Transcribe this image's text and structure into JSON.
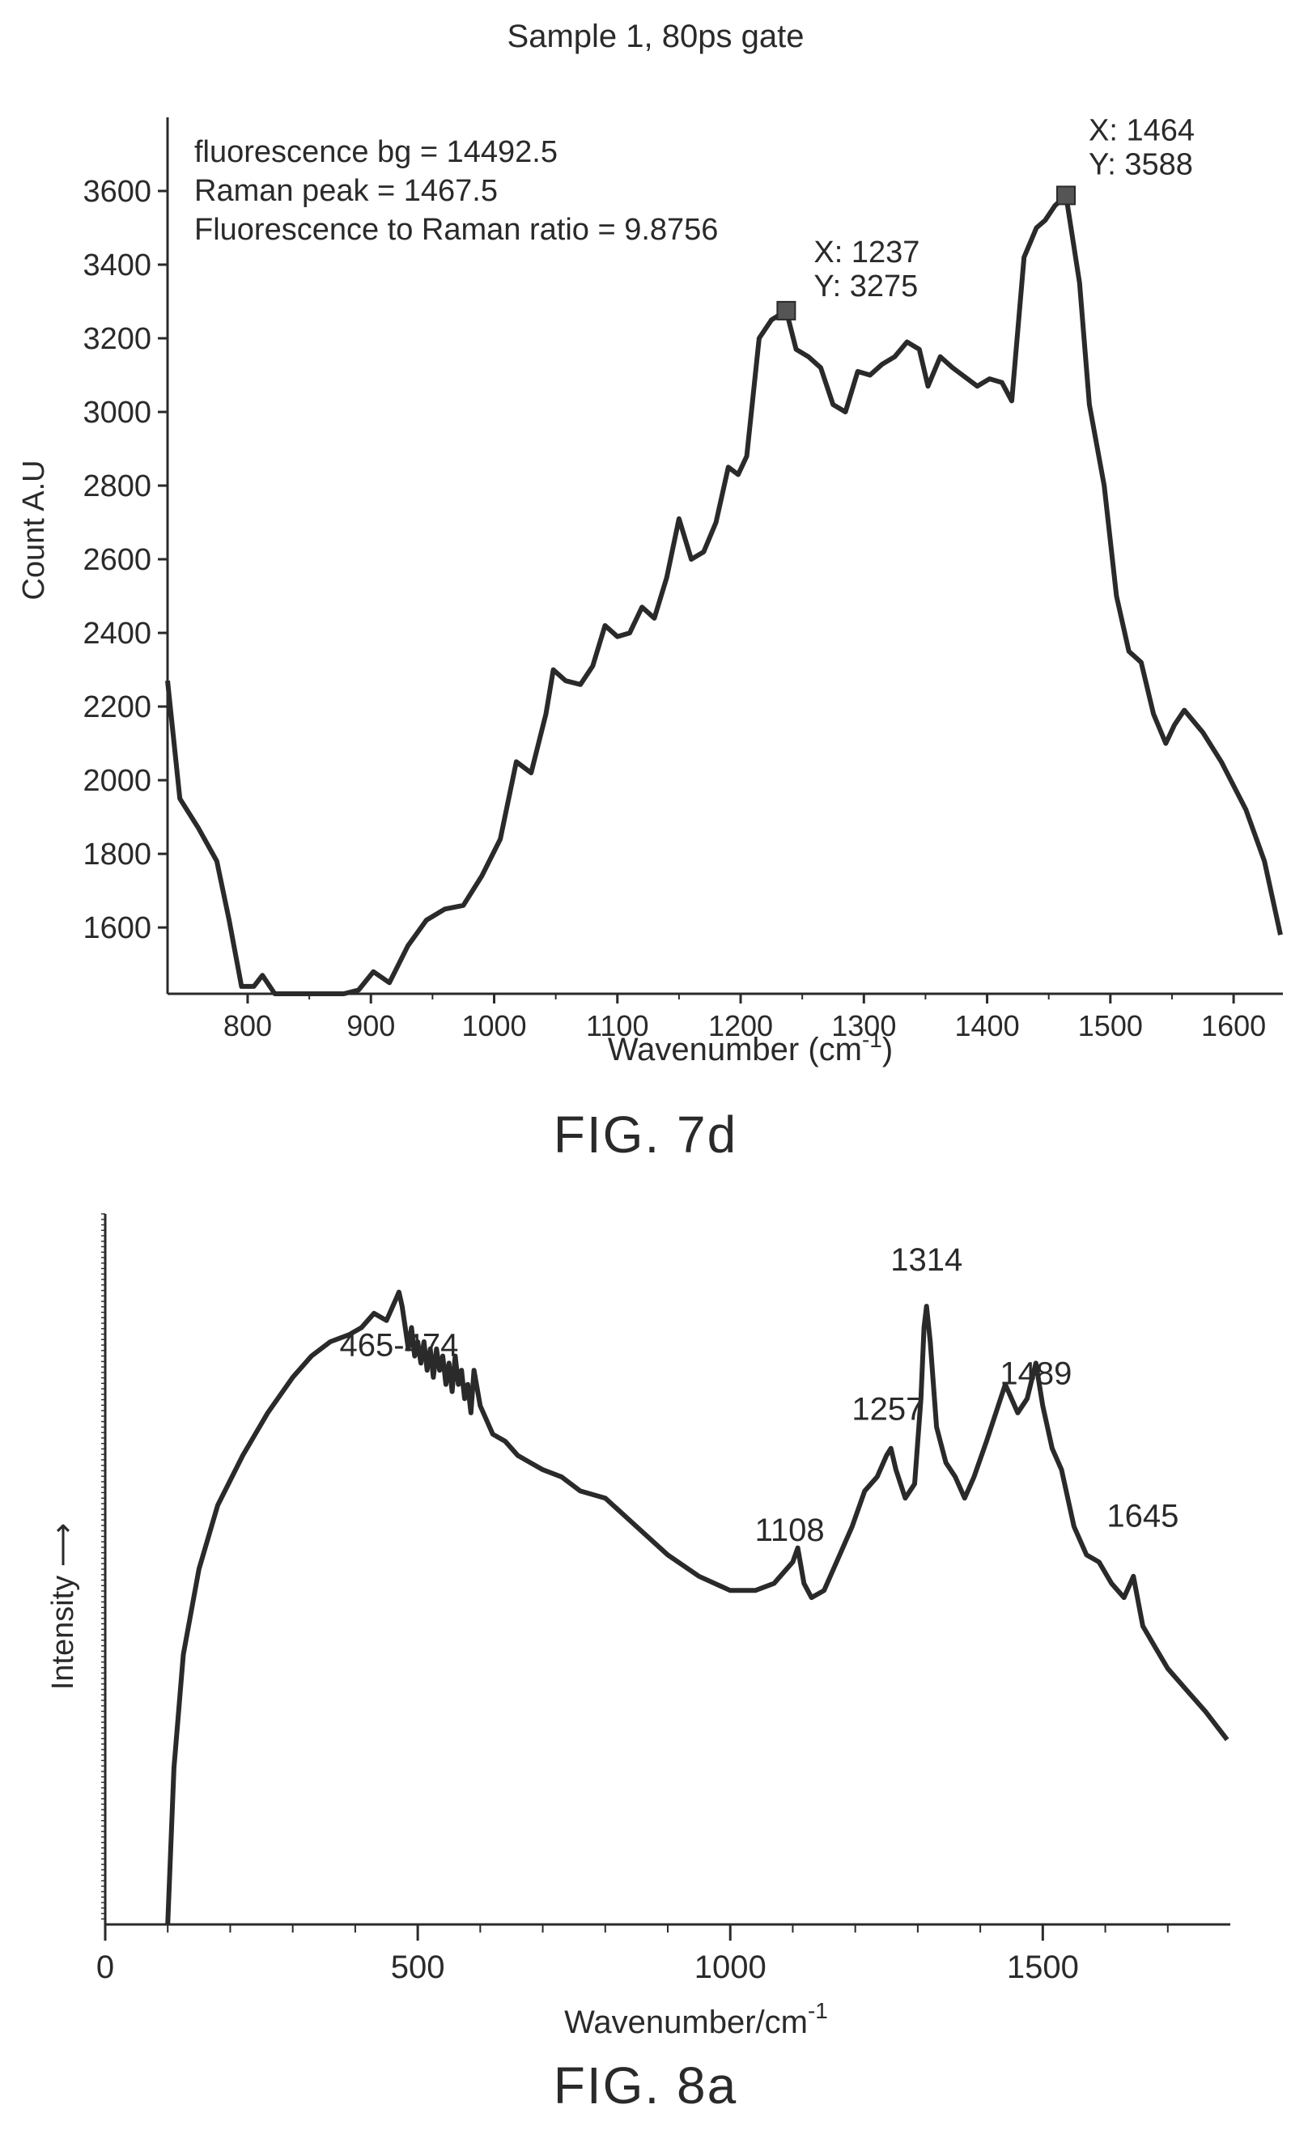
{
  "chart_data": [
    {
      "type": "line",
      "title": "Sample 1, 80ps gate",
      "xlabel": "Wavenumber (cm",
      "xlabel_sup": "-1",
      "xlabel_tail": ")",
      "ylabel": "Count A.U",
      "xlim": [
        735,
        1640
      ],
      "ylim": [
        1420,
        3800
      ],
      "xticks": [
        800,
        900,
        1000,
        1100,
        1200,
        1300,
        1400,
        1500,
        1600
      ],
      "xtick_labels": [
        "800",
        "900",
        "1000",
        "1100",
        "1200",
        "1300",
        "1400",
        "1500",
        "1600"
      ],
      "yticks": [
        1600,
        1800,
        2000,
        2200,
        2400,
        2600,
        2800,
        3000,
        3200,
        3400,
        3600
      ],
      "ytick_labels": [
        "1600",
        "1800",
        "2000",
        "2200",
        "2400",
        "2600",
        "2800",
        "3000",
        "3200",
        "3400",
        "3600"
      ],
      "grid": false,
      "caption": "FIG. 7d",
      "text_box": [
        "fluorescence bg = 14492.5",
        "Raman peak = 1467.5",
        "Fluorescence to Raman ratio = 9.8756"
      ],
      "markers": [
        {
          "x": 1237,
          "y": 3275,
          "label_x": "X: 1237",
          "label_y": "Y: 3275"
        },
        {
          "x": 1464,
          "y": 3588,
          "label_x": "X: 1464",
          "label_y": "Y: 3588"
        }
      ],
      "series": [
        {
          "color": "#2a2a2a",
          "x": [
            735,
            745,
            760,
            775,
            785,
            795,
            805,
            812,
            822,
            840,
            860,
            878,
            890,
            902,
            915,
            930,
            945,
            960,
            975,
            990,
            1005,
            1018,
            1030,
            1042,
            1048,
            1058,
            1070,
            1080,
            1090,
            1100,
            1110,
            1120,
            1130,
            1140,
            1150,
            1160,
            1170,
            1180,
            1190,
            1198,
            1205,
            1215,
            1225,
            1237,
            1245,
            1255,
            1265,
            1275,
            1285,
            1295,
            1305,
            1315,
            1325,
            1335,
            1345,
            1352,
            1362,
            1372,
            1380,
            1392,
            1402,
            1412,
            1420,
            1430,
            1440,
            1447,
            1455,
            1464,
            1475,
            1483,
            1495,
            1505,
            1515,
            1525,
            1535,
            1545,
            1552,
            1560,
            1575,
            1590,
            1610,
            1625,
            1638
          ],
          "y": [
            2270,
            1950,
            1870,
            1780,
            1620,
            1440,
            1440,
            1470,
            1420,
            1420,
            1420,
            1420,
            1430,
            1480,
            1450,
            1550,
            1620,
            1650,
            1660,
            1740,
            1840,
            2050,
            2020,
            2180,
            2300,
            2270,
            2260,
            2310,
            2420,
            2390,
            2400,
            2470,
            2440,
            2550,
            2710,
            2600,
            2620,
            2700,
            2850,
            2830,
            2880,
            3200,
            3250,
            3275,
            3170,
            3150,
            3120,
            3020,
            3000,
            3110,
            3100,
            3130,
            3150,
            3190,
            3170,
            3070,
            3150,
            3120,
            3100,
            3070,
            3090,
            3080,
            3030,
            3420,
            3500,
            3520,
            3560,
            3588,
            3350,
            3020,
            2800,
            2500,
            2350,
            2320,
            2180,
            2100,
            2150,
            2190,
            2130,
            2050,
            1920,
            1780,
            1580
          ]
        }
      ]
    },
    {
      "type": "line",
      "title": "",
      "xlabel": "Wavenumber/cm",
      "xlabel_sup": "-1",
      "ylabel": "Intensity ⟶",
      "xlim": [
        0,
        1800
      ],
      "ylim": [
        0,
        100
      ],
      "xticks": [
        0,
        500,
        1000,
        1500
      ],
      "xtick_labels": [
        "0",
        "500",
        "1000",
        "1500"
      ],
      "grid": false,
      "caption": "FIG. 8a",
      "annotations": [
        {
          "text": "465-474",
          "x": 470,
          "y": 80
        },
        {
          "text": "1314",
          "x": 1314,
          "y": 92
        },
        {
          "text": "1257",
          "x": 1252,
          "y": 71
        },
        {
          "text": "1108",
          "x": 1095,
          "y": 54
        },
        {
          "text": "1489",
          "x": 1489,
          "y": 76
        },
        {
          "text": "1645",
          "x": 1660,
          "y": 56
        }
      ],
      "series": [
        {
          "color": "#2a2a2a",
          "x": [
            100,
            110,
            125,
            150,
            180,
            220,
            260,
            300,
            330,
            360,
            390,
            410,
            430,
            450,
            465,
            470,
            475,
            480,
            485,
            490,
            495,
            500,
            505,
            510,
            515,
            520,
            525,
            530,
            535,
            540,
            545,
            550,
            555,
            560,
            565,
            570,
            575,
            580,
            585,
            590,
            600,
            620,
            640,
            660,
            680,
            700,
            730,
            760,
            800,
            850,
            900,
            950,
            1000,
            1040,
            1070,
            1090,
            1100,
            1108,
            1118,
            1130,
            1150,
            1175,
            1195,
            1215,
            1235,
            1250,
            1257,
            1265,
            1280,
            1295,
            1305,
            1310,
            1314,
            1320,
            1330,
            1345,
            1360,
            1375,
            1390,
            1410,
            1440,
            1460,
            1475,
            1489,
            1500,
            1515,
            1530,
            1550,
            1570,
            1590,
            1610,
            1630,
            1645,
            1660,
            1680,
            1700,
            1730,
            1760,
            1795
          ],
          "y": [
            0,
            22,
            38,
            50,
            59,
            66,
            72,
            77,
            80,
            82,
            83,
            84,
            86,
            85,
            88,
            89,
            87,
            84,
            81,
            84,
            80,
            82,
            79,
            82,
            78,
            81,
            77,
            81,
            78,
            80,
            76,
            79,
            75,
            80,
            76,
            78,
            74,
            76,
            72,
            78,
            73,
            69,
            68,
            66,
            65,
            64,
            63,
            61,
            60,
            56,
            52,
            49,
            47,
            47,
            48,
            50,
            51,
            53,
            48,
            46,
            47,
            52,
            56,
            61,
            63,
            66,
            67,
            64,
            60,
            62,
            74,
            84,
            87,
            82,
            70,
            65,
            63,
            60,
            63,
            68,
            76,
            72,
            74,
            79,
            73,
            67,
            64,
            56,
            52,
            51,
            48,
            46,
            49,
            42,
            39,
            36,
            33,
            30,
            26
          ]
        }
      ]
    }
  ]
}
